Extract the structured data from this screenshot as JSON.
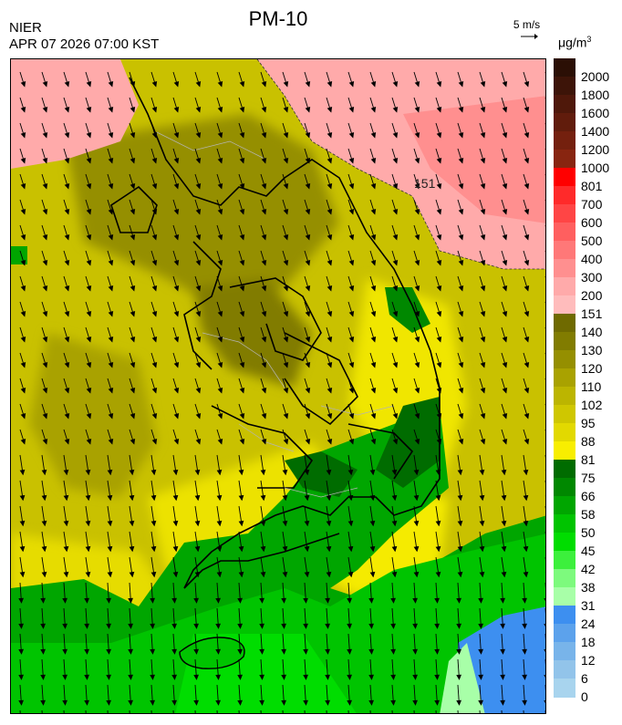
{
  "header": {
    "title": "PM-10",
    "agency": "NIER",
    "timestamp": "APR 07 2026 07:00 KST",
    "wind_ref_label": "5 m/s",
    "unit_base": "μg/m",
    "unit_exp": "3"
  },
  "map": {
    "contour_label": "151",
    "wind_direction": "north-west to south-east",
    "icons": [
      "wind-arrow-icon"
    ]
  },
  "legend": {
    "levels": [
      {
        "label": "2000",
        "color": "#2b0f05"
      },
      {
        "label": "1800",
        "color": "#3d1408"
      },
      {
        "label": "1600",
        "color": "#4f180a"
      },
      {
        "label": "1400",
        "color": "#611c0c"
      },
      {
        "label": "1200",
        "color": "#74200e"
      },
      {
        "label": "1000",
        "color": "#882510"
      },
      {
        "label": "801",
        "color": "#ff0000"
      },
      {
        "label": "700",
        "color": "#ff2a2a"
      },
      {
        "label": "600",
        "color": "#ff4545"
      },
      {
        "label": "500",
        "color": "#ff5f5f"
      },
      {
        "label": "400",
        "color": "#ff7878"
      },
      {
        "label": "300",
        "color": "#ff8f8f"
      },
      {
        "label": "200",
        "color": "#ffaaaa"
      },
      {
        "label": "151",
        "color": "#ffbcbc"
      },
      {
        "label": "140",
        "color": "#6f6a00"
      },
      {
        "label": "130",
        "color": "#817c00"
      },
      {
        "label": "120",
        "color": "#958f00"
      },
      {
        "label": "110",
        "color": "#a9a200"
      },
      {
        "label": "102",
        "color": "#bcb500"
      },
      {
        "label": "95",
        "color": "#cfc700"
      },
      {
        "label": "88",
        "color": "#e2d900"
      },
      {
        "label": "81",
        "color": "#f8ee00"
      },
      {
        "label": "75",
        "color": "#006c00"
      },
      {
        "label": "66",
        "color": "#008800"
      },
      {
        "label": "58",
        "color": "#00a600"
      },
      {
        "label": "50",
        "color": "#00c400"
      },
      {
        "label": "45",
        "color": "#00dd00"
      },
      {
        "label": "42",
        "color": "#3cf03c"
      },
      {
        "label": "38",
        "color": "#7dfa7d"
      },
      {
        "label": "31",
        "color": "#a8ffa8"
      },
      {
        "label": "24",
        "color": "#3d8ff0"
      },
      {
        "label": "18",
        "color": "#5ca2ec"
      },
      {
        "label": "12",
        "color": "#78b4ea"
      },
      {
        "label": "6",
        "color": "#92c4ea"
      },
      {
        "label": "0",
        "color": "#a8d4ee"
      }
    ]
  }
}
